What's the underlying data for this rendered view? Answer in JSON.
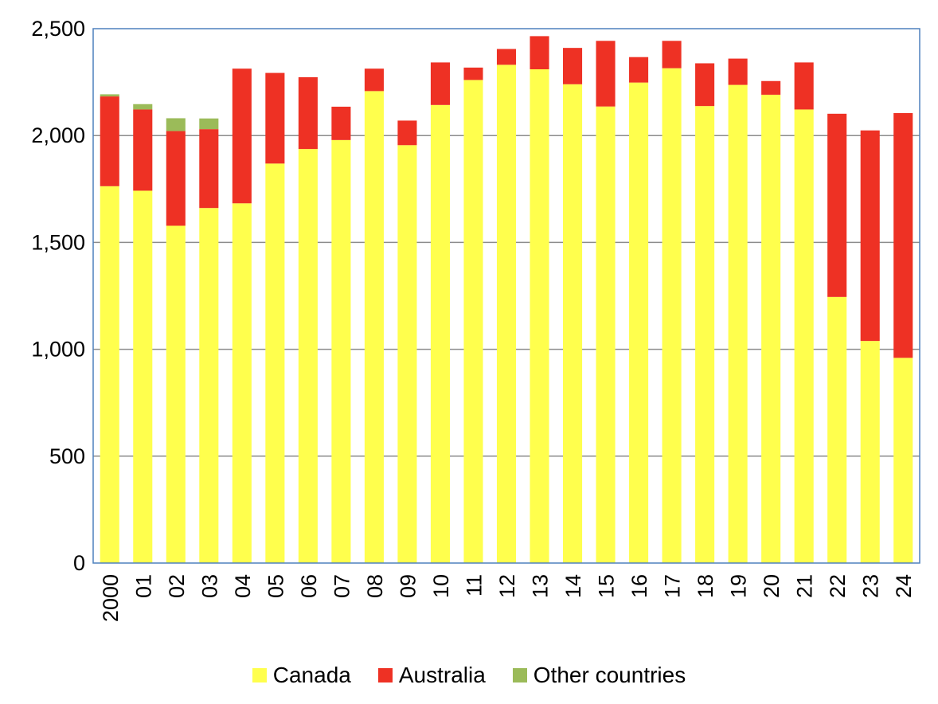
{
  "chart_data": {
    "type": "bar",
    "stacked": true,
    "title": "",
    "xlabel": "",
    "ylabel": "",
    "ylim": [
      0,
      2500
    ],
    "yticks": [
      0,
      500,
      1000,
      1500,
      2000,
      2500
    ],
    "ytick_labels": [
      "0",
      "500",
      "1,000",
      "1,500",
      "2,000",
      "2,500"
    ],
    "grid": true,
    "legend": "bottom",
    "categories": [
      "2000",
      "01",
      "02",
      "03",
      "04",
      "05",
      "06",
      "07",
      "08",
      "09",
      "10",
      "11",
      "12",
      "13",
      "14",
      "15",
      "16",
      "17",
      "18",
      "19",
      "20",
      "21",
      "22",
      "23",
      "24"
    ],
    "series": [
      {
        "name": "Canada",
        "color": "#ffff4d",
        "values": [
          1763,
          1742,
          1578,
          1661,
          1683,
          1869,
          1937,
          1979,
          2208,
          1955,
          2143,
          2260,
          2331,
          2310,
          2240,
          2136,
          2248,
          2315,
          2138,
          2237,
          2191,
          2122,
          1245,
          1039,
          960
        ]
      },
      {
        "name": "Australia",
        "color": "#ee3124",
        "values": [
          420,
          380,
          443,
          369,
          630,
          424,
          336,
          156,
          105,
          115,
          199,
          58,
          74,
          155,
          170,
          307,
          119,
          128,
          200,
          123,
          64,
          220,
          857,
          985,
          1145
        ]
      },
      {
        "name": "Other countries",
        "color": "#9bbb59",
        "values": [
          10,
          25,
          60,
          50,
          0,
          0,
          0,
          0,
          0,
          0,
          0,
          0,
          0,
          0,
          0,
          0,
          0,
          0,
          0,
          0,
          0,
          0,
          0,
          0,
          0
        ]
      }
    ]
  }
}
